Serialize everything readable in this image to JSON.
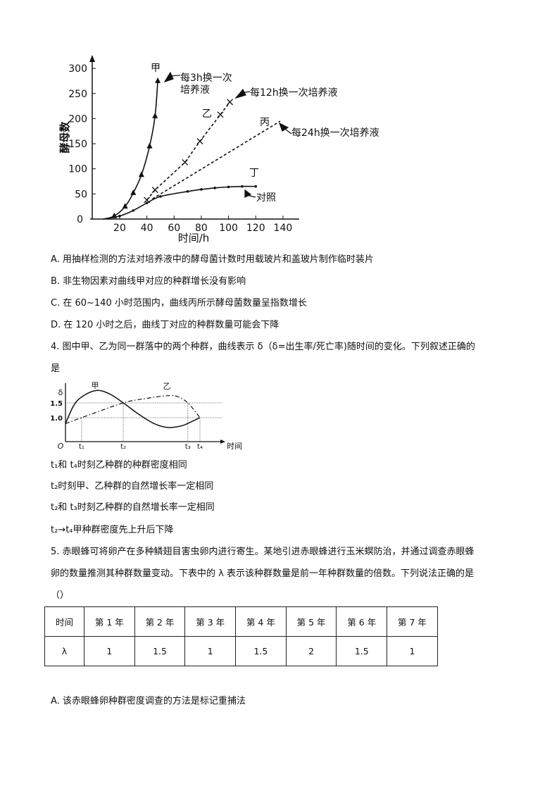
{
  "question3": {
    "options": [
      "A. 用抽样检测的方法对培养液中的酵母菌计数时用载玻片和盖玻片制作临时装片",
      "B. 非生物因素对曲线甲对应的种群增长没有影响",
      "C. 在 60~140 小时范围内，曲线丙所示酵母菌数量呈指数增长",
      "D. 在 120 小时之后，曲线丁对应的种群数量可能会下降"
    ]
  },
  "question4": {
    "stem_line1": "4. 图中甲、乙为同一群落中的两个种群，曲线表示 δ（δ=出生率/死亡率)随时间的变化。下列叙述正确的",
    "stem_line2": "是",
    "options": [
      {
        "prefix": "A. ",
        "text": "t₁和 t₄时刻乙种群的种群密度相同"
      },
      {
        "prefix": "B. ",
        "text": "t₂时刻甲、乙种群的自然增长率一定相同"
      },
      {
        "prefix": "C. ",
        "text": "t₂和 t₃时刻乙种群的自然增长率一定相同"
      },
      {
        "prefix": "D. ",
        "text": "t₂→t₄甲种群密度先上升后下降"
      }
    ]
  },
  "question5": {
    "stem_line1": "5. 赤眼蜂可将卵产在多种鳞翅目害虫卵内进行寄生。某地引进赤眼蜂进行玉米螟防治，并通过调查赤眼蜂",
    "stem_line2": "卵的数量推测其种群数量变动。下表中的 λ 表示该种群数量是前一年种群数量的倍数。下列说法正确的是",
    "stem_line3": "（）",
    "table": {
      "headers": [
        "时间",
        "第 1 年",
        "第 2 年",
        "第 3 年",
        "第 4 年",
        "第 5 年",
        "第 6 年",
        "第 7 年"
      ],
      "row": [
        "λ",
        "1",
        "1.5",
        "1",
        "1.5",
        "2",
        "1.5",
        "1"
      ]
    },
    "options": [
      "A. 该赤眼蜂卵种群密度调查的方法是标记重捕法"
    ]
  },
  "chart_data": [
    {
      "type": "line",
      "xlabel": "时间/h",
      "ylabel": "酵母数",
      "xlim": [
        0,
        150
      ],
      "ylim": [
        0,
        300
      ],
      "xticks": [
        20,
        40,
        60,
        80,
        100,
        120,
        140
      ],
      "yticks": [
        0,
        50,
        100,
        150,
        200,
        250,
        300
      ],
      "origin_label": "0",
      "grid": false,
      "series": [
        {
          "name": "甲",
          "annotation": "每3h换一次培养液",
          "annotation_lines": [
            "每3h换一次",
            "培养液"
          ],
          "style": "solid",
          "marker": "triangle",
          "points": [
            [
              8,
              0
            ],
            [
              16,
              6
            ],
            [
              24,
              25
            ],
            [
              30,
              52
            ],
            [
              36,
              88
            ],
            [
              42,
              145
            ],
            [
              46,
              205
            ],
            [
              48,
              275
            ]
          ]
        },
        {
          "name": "乙",
          "annotation": "每12h换一次培养液",
          "style": "dashed",
          "marker": "x",
          "points": [
            [
              40,
              38
            ],
            [
              46,
              58
            ],
            [
              68,
              113
            ],
            [
              79,
              155
            ],
            [
              94,
              208
            ],
            [
              101,
              233
            ]
          ]
        },
        {
          "name": "丙",
          "annotation": "每24h换一次培养液",
          "style": "dashed",
          "marker": "none",
          "points": [
            [
              44,
              40
            ],
            [
              138,
              195
            ]
          ]
        },
        {
          "name": "丁",
          "annotation": "对照",
          "style": "solid",
          "marker": "dot",
          "points": [
            [
              8,
              0
            ],
            [
              20,
              6
            ],
            [
              30,
              17
            ],
            [
              40,
              32
            ],
            [
              50,
              45
            ],
            [
              70,
              55
            ],
            [
              80,
              59
            ],
            [
              90,
              62
            ],
            [
              100,
              64
            ],
            [
              110,
              65
            ],
            [
              120,
              65
            ]
          ]
        }
      ]
    },
    {
      "type": "line",
      "xlabel": "时间",
      "ylabel": "δ",
      "origin_label": "O",
      "ylim": [
        0,
        2.0
      ],
      "yticks": [
        1.0,
        1.5
      ],
      "ytick_labels": [
        "1.0",
        "1.5"
      ],
      "xticks": [
        {
          "label": "t₁",
          "x": 1.2
        },
        {
          "label": "t₂",
          "x": 4.3
        },
        {
          "label": "t₃",
          "x": 9.1
        },
        {
          "label": "t₄",
          "x": 10
        }
      ],
      "series": [
        {
          "name": "甲",
          "style": "solid",
          "points": [
            [
              0,
              0.8
            ],
            [
              0.6,
              1.4
            ],
            [
              1.2,
              1.7
            ],
            [
              2.3,
              1.92
            ],
            [
              3.3,
              1.8
            ],
            [
              4.3,
              1.5
            ],
            [
              5.5,
              1.1
            ],
            [
              6.6,
              0.8
            ],
            [
              7.6,
              0.67
            ],
            [
              8.6,
              0.72
            ],
            [
              9.3,
              0.85
            ],
            [
              10,
              1.0
            ]
          ]
        },
        {
          "name": "乙",
          "style": "dash-dot",
          "points": [
            [
              0,
              0.8
            ],
            [
              1.2,
              1.0
            ],
            [
              4.3,
              1.5
            ],
            [
              6.0,
              1.65
            ],
            [
              7.5,
              1.74
            ],
            [
              8.3,
              1.72
            ],
            [
              9.1,
              1.5
            ],
            [
              10,
              1.0
            ]
          ]
        }
      ]
    }
  ]
}
